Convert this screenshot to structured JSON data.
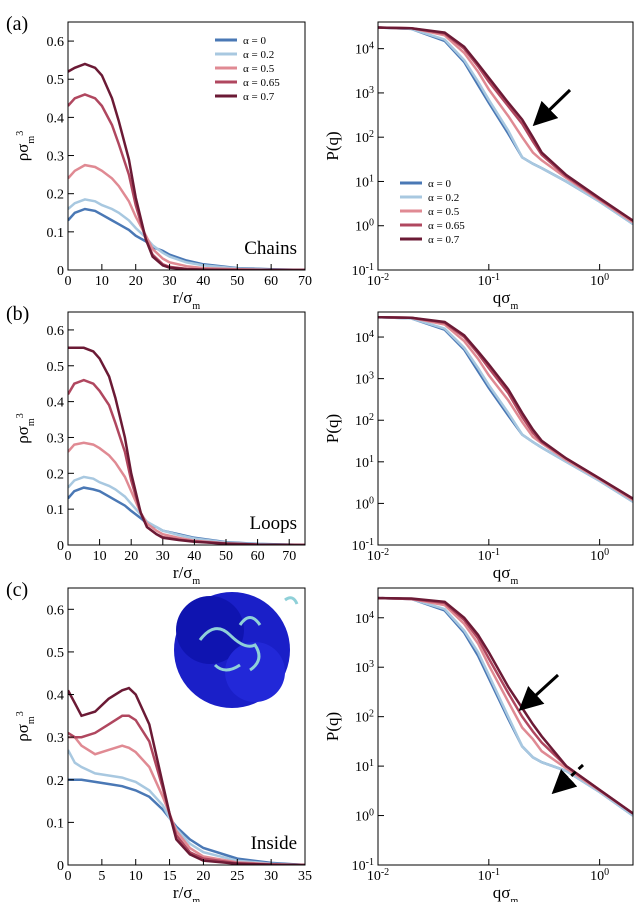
{
  "chart_data": [
    {
      "type": "line",
      "panel_label": "(a)",
      "annotation": "Chains",
      "legend": "upper right",
      "y_label": "ρσ",
      "y_label_sub": "m",
      "y_label_sup": "3",
      "x_label": "r/σ",
      "x_label_sub": "m",
      "xlim": [
        0,
        70
      ],
      "xticks": [
        0,
        10,
        20,
        30,
        40,
        50,
        60,
        70
      ],
      "ylim": [
        0,
        0.65
      ],
      "yticks": [
        0,
        0.1,
        0.2,
        0.3,
        0.4,
        0.5,
        0.6
      ],
      "x": [
        0,
        2,
        5,
        8,
        10,
        13,
        15,
        18,
        20,
        23,
        25,
        28,
        30,
        35,
        40,
        50,
        60,
        70
      ],
      "series": [
        {
          "name": "α = 0",
          "color": "#4a78b5",
          "values": [
            0.13,
            0.15,
            0.16,
            0.155,
            0.145,
            0.13,
            0.12,
            0.105,
            0.09,
            0.075,
            0.06,
            0.05,
            0.04,
            0.025,
            0.015,
            0.005,
            0.002,
            0
          ]
        },
        {
          "name": "α = 0.2",
          "color": "#a8c8e0",
          "values": [
            0.16,
            0.175,
            0.185,
            0.18,
            0.17,
            0.16,
            0.15,
            0.13,
            0.11,
            0.085,
            0.065,
            0.045,
            0.035,
            0.02,
            0.012,
            0.004,
            0.001,
            0
          ]
        },
        {
          "name": "α = 0.5",
          "color": "#e08a93",
          "values": [
            0.24,
            0.26,
            0.275,
            0.27,
            0.26,
            0.24,
            0.22,
            0.18,
            0.14,
            0.09,
            0.055,
            0.03,
            0.02,
            0.01,
            0.005,
            0.002,
            0,
            0
          ]
        },
        {
          "name": "α = 0.65",
          "color": "#b0475f",
          "values": [
            0.43,
            0.45,
            0.46,
            0.45,
            0.43,
            0.38,
            0.33,
            0.25,
            0.17,
            0.08,
            0.04,
            0.015,
            0.008,
            0.003,
            0.001,
            0,
            0,
            0
          ]
        },
        {
          "name": "α = 0.7",
          "color": "#6b1a35",
          "values": [
            0.52,
            0.53,
            0.54,
            0.53,
            0.51,
            0.45,
            0.39,
            0.29,
            0.19,
            0.08,
            0.035,
            0.012,
            0.006,
            0.002,
            0.001,
            0,
            0,
            0
          ]
        }
      ]
    },
    {
      "type": "line",
      "legend": "lower left",
      "xscale": "log",
      "yscale": "log",
      "y_label": "P(q)",
      "x_label": "qσ",
      "x_label_sub": "m",
      "xlim": [
        0.01,
        2
      ],
      "xticks": [
        {
          "value": 0.01,
          "label": "10",
          "label_sup": "-2"
        },
        {
          "value": 0.1,
          "label": "10",
          "label_sup": "-1"
        },
        {
          "value": 1,
          "label": "10",
          "label_sup": "0"
        }
      ],
      "ylim": [
        0.1,
        40000
      ],
      "yticks": [
        {
          "value": 0.1,
          "label": "10",
          "label_sup": "-1"
        },
        {
          "value": 1,
          "label": "10",
          "label_sup": "0"
        },
        {
          "value": 10,
          "label": "10",
          "label_sup": "1"
        },
        {
          "value": 100,
          "label": "10",
          "label_sup": "2"
        },
        {
          "value": 1000,
          "label": "10",
          "label_sup": "3"
        },
        {
          "value": 10000,
          "label": "10",
          "label_sup": "4"
        }
      ],
      "x": [
        0.01,
        0.02,
        0.04,
        0.06,
        0.08,
        0.1,
        0.15,
        0.2,
        0.25,
        0.3,
        0.5,
        1,
        2
      ],
      "series": [
        {
          "name": "α = 0",
          "color": "#4a78b5",
          "values": [
            30000,
            28000,
            15000,
            5000,
            1500,
            600,
            120,
            35,
            25,
            20,
            10,
            3.5,
            1.1
          ]
        },
        {
          "name": "α = 0.2",
          "color": "#a8c8e0",
          "values": [
            30000,
            28000,
            16000,
            5500,
            1800,
            700,
            140,
            35,
            25,
            20,
            10,
            3.5,
            1.1
          ]
        },
        {
          "name": "α = 0.5",
          "color": "#e08a93",
          "values": [
            30000,
            29000,
            20000,
            8000,
            3000,
            1200,
            300,
            100,
            45,
            30,
            12,
            3.8,
            1.2
          ]
        },
        {
          "name": "α = 0.65",
          "color": "#b0475f",
          "values": [
            30000,
            29000,
            22000,
            10000,
            4000,
            1800,
            500,
            200,
            80,
            40,
            13,
            4,
            1.3
          ]
        },
        {
          "name": "α = 0.7",
          "color": "#6b1a35",
          "values": [
            30000,
            29000,
            23000,
            11000,
            4500,
            2200,
            600,
            250,
            100,
            45,
            14,
            4.2,
            1.3
          ]
        }
      ]
    },
    {
      "type": "line",
      "panel_label": "(b)",
      "annotation": "Loops",
      "y_label": "ρσ",
      "y_label_sub": "m",
      "y_label_sup": "3",
      "x_label": "r/σ",
      "x_label_sub": "m",
      "xlim": [
        0,
        75
      ],
      "xticks": [
        0,
        10,
        20,
        30,
        40,
        50,
        60,
        70
      ],
      "ylim": [
        0,
        0.65
      ],
      "yticks": [
        0,
        0.1,
        0.2,
        0.3,
        0.4,
        0.5,
        0.6
      ],
      "x": [
        0,
        2,
        5,
        8,
        10,
        13,
        15,
        18,
        20,
        23,
        25,
        28,
        30,
        35,
        40,
        50,
        60,
        75
      ],
      "series": [
        {
          "color": "#4a78b5",
          "values": [
            0.13,
            0.15,
            0.16,
            0.155,
            0.15,
            0.135,
            0.125,
            0.11,
            0.095,
            0.075,
            0.06,
            0.05,
            0.04,
            0.03,
            0.02,
            0.008,
            0.003,
            0
          ]
        },
        {
          "color": "#a8c8e0",
          "values": [
            0.16,
            0.18,
            0.19,
            0.185,
            0.175,
            0.165,
            0.155,
            0.135,
            0.115,
            0.085,
            0.065,
            0.05,
            0.04,
            0.028,
            0.018,
            0.007,
            0.002,
            0
          ]
        },
        {
          "color": "#e08a93",
          "values": [
            0.26,
            0.28,
            0.285,
            0.28,
            0.27,
            0.25,
            0.23,
            0.19,
            0.15,
            0.09,
            0.06,
            0.04,
            0.03,
            0.02,
            0.012,
            0.005,
            0.001,
            0
          ]
        },
        {
          "color": "#b0475f",
          "values": [
            0.42,
            0.45,
            0.46,
            0.45,
            0.43,
            0.39,
            0.34,
            0.26,
            0.18,
            0.09,
            0.05,
            0.03,
            0.022,
            0.015,
            0.01,
            0.004,
            0.001,
            0
          ]
        },
        {
          "color": "#6b1a35",
          "values": [
            0.55,
            0.55,
            0.55,
            0.54,
            0.52,
            0.47,
            0.41,
            0.3,
            0.2,
            0.09,
            0.05,
            0.03,
            0.02,
            0.014,
            0.009,
            0.004,
            0.001,
            0
          ]
        }
      ]
    },
    {
      "type": "line",
      "xscale": "log",
      "yscale": "log",
      "y_label": "P(q)",
      "x_label": "qσ",
      "x_label_sub": "m",
      "xlim": [
        0.01,
        2
      ],
      "xticks": [
        {
          "value": 0.01,
          "label": "10",
          "label_sup": "-2"
        },
        {
          "value": 0.1,
          "label": "10",
          "label_sup": "-1"
        },
        {
          "value": 1,
          "label": "10",
          "label_sup": "0"
        }
      ],
      "ylim": [
        0.1,
        40000
      ],
      "yticks": [
        {
          "value": 0.1,
          "label": "10",
          "label_sup": "-1"
        },
        {
          "value": 1,
          "label": "10",
          "label_sup": "0"
        },
        {
          "value": 10,
          "label": "10",
          "label_sup": "1"
        },
        {
          "value": 100,
          "label": "10",
          "label_sup": "2"
        },
        {
          "value": 1000,
          "label": "10",
          "label_sup": "3"
        },
        {
          "value": 10000,
          "label": "10",
          "label_sup": "4"
        }
      ],
      "x": [
        0.01,
        0.02,
        0.04,
        0.06,
        0.08,
        0.1,
        0.15,
        0.2,
        0.25,
        0.3,
        0.5,
        1,
        2
      ],
      "series": [
        {
          "color": "#4a78b5",
          "values": [
            30000,
            28000,
            15000,
            5000,
            1500,
            600,
            130,
            45,
            30,
            22,
            10,
            3.5,
            1.1
          ]
        },
        {
          "color": "#a8c8e0",
          "values": [
            30000,
            28000,
            16000,
            5500,
            1800,
            700,
            150,
            45,
            30,
            22,
            10,
            3.5,
            1.1
          ]
        },
        {
          "color": "#e08a93",
          "values": [
            30000,
            29000,
            20000,
            8000,
            3000,
            1200,
            300,
            90,
            40,
            28,
            11,
            3.8,
            1.2
          ]
        },
        {
          "color": "#b0475f",
          "values": [
            30000,
            29000,
            22000,
            10000,
            4000,
            1800,
            450,
            120,
            50,
            30,
            12,
            4,
            1.3
          ]
        },
        {
          "color": "#6b1a35",
          "values": [
            30000,
            29000,
            23000,
            11000,
            4500,
            2200,
            550,
            150,
            60,
            32,
            12,
            4,
            1.3
          ]
        }
      ]
    },
    {
      "type": "line",
      "panel_label": "(c)",
      "annotation": "Inside",
      "y_label": "ρσ",
      "y_label_sub": "m",
      "y_label_sup": "3",
      "x_label": "r/σ",
      "x_label_sub": "m",
      "xlim": [
        0,
        35
      ],
      "xticks": [
        0,
        5,
        10,
        15,
        20,
        25,
        30,
        35
      ],
      "ylim": [
        0,
        0.65
      ],
      "yticks": [
        0,
        0.1,
        0.2,
        0.3,
        0.4,
        0.5,
        0.6
      ],
      "x": [
        0,
        1,
        2,
        4,
        6,
        8,
        9,
        10,
        12,
        14,
        15,
        16,
        18,
        20,
        25,
        30,
        35
      ],
      "series": [
        {
          "color": "#4a78b5",
          "values": [
            0.2,
            0.2,
            0.2,
            0.195,
            0.19,
            0.185,
            0.18,
            0.175,
            0.16,
            0.13,
            0.11,
            0.09,
            0.06,
            0.04,
            0.015,
            0.005,
            0
          ]
        },
        {
          "color": "#a8c8e0",
          "values": [
            0.27,
            0.24,
            0.23,
            0.215,
            0.21,
            0.205,
            0.2,
            0.195,
            0.175,
            0.14,
            0.11,
            0.085,
            0.05,
            0.03,
            0.01,
            0.003,
            0
          ]
        },
        {
          "color": "#e08a93",
          "values": [
            0.3,
            0.3,
            0.28,
            0.26,
            0.27,
            0.28,
            0.275,
            0.265,
            0.23,
            0.16,
            0.12,
            0.08,
            0.04,
            0.02,
            0.006,
            0.002,
            0
          ]
        },
        {
          "color": "#b0475f",
          "values": [
            0.31,
            0.3,
            0.3,
            0.31,
            0.33,
            0.35,
            0.35,
            0.34,
            0.29,
            0.18,
            0.12,
            0.07,
            0.03,
            0.015,
            0.004,
            0.001,
            0
          ]
        },
        {
          "color": "#6b1a35",
          "values": [
            0.41,
            0.38,
            0.35,
            0.36,
            0.39,
            0.41,
            0.415,
            0.4,
            0.33,
            0.19,
            0.12,
            0.06,
            0.025,
            0.01,
            0.003,
            0.001,
            0
          ]
        }
      ]
    },
    {
      "type": "line",
      "xscale": "log",
      "yscale": "log",
      "y_label": "P(q)",
      "x_label": "qσ",
      "x_label_sub": "m",
      "xlim": [
        0.01,
        2
      ],
      "xticks": [
        {
          "value": 0.01,
          "label": "10",
          "label_sup": "-2"
        },
        {
          "value": 0.1,
          "label": "10",
          "label_sup": "-1"
        },
        {
          "value": 1,
          "label": "10",
          "label_sup": "0"
        }
      ],
      "ylim": [
        0.1,
        40000
      ],
      "yticks": [
        {
          "value": 0.1,
          "label": "10",
          "label_sup": "-1"
        },
        {
          "value": 1,
          "label": "10",
          "label_sup": "0"
        },
        {
          "value": 10,
          "label": "10",
          "label_sup": "1"
        },
        {
          "value": 100,
          "label": "10",
          "label_sup": "2"
        },
        {
          "value": 1000,
          "label": "10",
          "label_sup": "3"
        },
        {
          "value": 10000,
          "label": "10",
          "label_sup": "4"
        }
      ],
      "x": [
        0.01,
        0.02,
        0.04,
        0.06,
        0.08,
        0.1,
        0.15,
        0.2,
        0.25,
        0.3,
        0.5,
        1,
        2
      ],
      "series": [
        {
          "color": "#4a78b5",
          "values": [
            25000,
            24000,
            14000,
            5000,
            1700,
            600,
            90,
            25,
            15,
            12,
            8,
            3,
            1
          ]
        },
        {
          "color": "#a8c8e0",
          "values": [
            25000,
            24000,
            15000,
            5500,
            2000,
            700,
            100,
            25,
            15,
            12,
            8,
            3,
            1
          ]
        },
        {
          "color": "#e08a93",
          "values": [
            25000,
            24000,
            18000,
            7500,
            3000,
            1100,
            200,
            60,
            35,
            20,
            9,
            3.2,
            1.1
          ]
        },
        {
          "color": "#b0475f",
          "values": [
            25000,
            24000,
            20000,
            9000,
            3800,
            1500,
            300,
            100,
            50,
            30,
            10,
            3.3,
            1.1
          ]
        },
        {
          "color": "#6b1a35",
          "values": [
            25000,
            24500,
            21000,
            10000,
            4500,
            2000,
            400,
            150,
            70,
            40,
            10,
            3.3,
            1.1
          ]
        }
      ]
    }
  ]
}
